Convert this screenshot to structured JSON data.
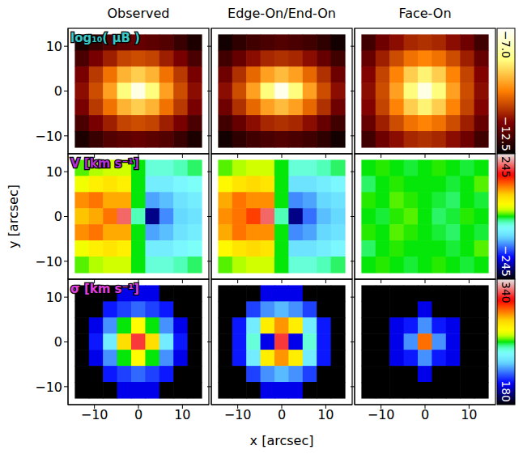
{
  "chart_data": {
    "type": "heatmap",
    "columns": [
      "Observed",
      "Edge-On/End-On",
      "Face-On"
    ],
    "xlabel": "x [arcsec]",
    "ylabel": "y [arcsec]",
    "xlim": [
      -16,
      16
    ],
    "ylim": [
      -14,
      14
    ],
    "xticks": [
      {
        "value": -10,
        "label": "−10"
      },
      0,
      10
    ],
    "yticks": [
      {
        "value": -10,
        "label": "−10"
      },
      0,
      10
    ],
    "x_centers": [
      -12.8,
      -9.6,
      -6.4,
      -3.2,
      0,
      3.2,
      6.4,
      9.6,
      12.8
    ],
    "y_centers": [
      10.8,
      7.2,
      3.6,
      0,
      -3.6,
      -7.2,
      -10.8
    ],
    "rows": [
      {
        "label": "log₁₀( μB )",
        "colorbar": {
          "range": [
            -12.5,
            -7.0
          ],
          "ticks": [
            {
              "value": -7.0,
              "label": "−7.0"
            },
            {
              "value": -12.5,
              "label": "−12.5"
            }
          ]
        },
        "panels": [
          {
            "cells": [
              [
                -12.2,
                -11.9,
                -11.6,
                -11.5,
                -11.4,
                -11.5,
                -11.6,
                -11.9,
                -12.2
              ],
              [
                -11.7,
                -11.2,
                -10.8,
                -10.4,
                -10.3,
                -10.4,
                -10.8,
                -11.2,
                -11.7
              ],
              [
                -11.2,
                -10.5,
                -9.9,
                -9.2,
                -8.9,
                -9.2,
                -9.9,
                -10.5,
                -11.2
              ],
              [
                -11.0,
                -10.3,
                -9.4,
                -8.4,
                -7.3,
                -8.4,
                -9.4,
                -10.3,
                -11.0
              ],
              [
                -11.2,
                -10.5,
                -9.9,
                -9.2,
                -8.9,
                -9.2,
                -9.9,
                -10.5,
                -11.2
              ],
              [
                -11.7,
                -11.2,
                -10.8,
                -10.4,
                -10.3,
                -10.4,
                -10.8,
                -11.2,
                -11.7
              ],
              [
                -12.2,
                -11.9,
                -11.6,
                -11.5,
                -11.4,
                -11.5,
                -11.6,
                -11.9,
                -12.2
              ]
            ]
          },
          {
            "cells": [
              [
                -12.3,
                -12.0,
                -11.8,
                -11.7,
                -11.6,
                -11.7,
                -11.8,
                -12.0,
                -12.3
              ],
              [
                -11.8,
                -11.4,
                -11.0,
                -10.7,
                -10.6,
                -10.7,
                -11.0,
                -11.4,
                -11.8
              ],
              [
                -11.3,
                -10.6,
                -10.0,
                -9.4,
                -9.1,
                -9.4,
                -10.0,
                -10.6,
                -11.3
              ],
              [
                -11.0,
                -10.3,
                -9.4,
                -8.4,
                -7.2,
                -8.4,
                -9.4,
                -10.3,
                -11.0
              ],
              [
                -11.3,
                -10.6,
                -10.0,
                -9.4,
                -9.1,
                -9.4,
                -10.0,
                -10.6,
                -11.3
              ],
              [
                -11.8,
                -11.4,
                -11.0,
                -10.7,
                -10.6,
                -10.7,
                -11.0,
                -11.4,
                -11.8
              ],
              [
                -12.3,
                -12.0,
                -11.8,
                -11.7,
                -11.6,
                -11.7,
                -11.8,
                -12.0,
                -12.3
              ]
            ]
          },
          {
            "cells": [
              [
                -11.8,
                -11.3,
                -11.0,
                -10.7,
                -10.6,
                -10.7,
                -11.0,
                -11.3,
                -11.8
              ],
              [
                -11.4,
                -10.8,
                -10.3,
                -9.9,
                -9.7,
                -9.9,
                -10.3,
                -10.8,
                -11.4
              ],
              [
                -11.1,
                -10.4,
                -9.7,
                -8.9,
                -8.5,
                -8.9,
                -9.7,
                -10.4,
                -11.1
              ],
              [
                -11.0,
                -10.3,
                -9.4,
                -8.4,
                -7.3,
                -8.4,
                -9.4,
                -10.3,
                -11.0
              ],
              [
                -11.1,
                -10.4,
                -9.7,
                -8.9,
                -8.5,
                -8.9,
                -9.7,
                -10.4,
                -11.1
              ],
              [
                -11.4,
                -10.8,
                -10.3,
                -9.9,
                -9.7,
                -9.9,
                -10.3,
                -10.8,
                -11.4
              ],
              [
                -11.8,
                -11.3,
                -11.0,
                -10.7,
                -10.6,
                -10.7,
                -11.0,
                -11.3,
                -11.8
              ]
            ]
          }
        ]
      },
      {
        "label": "V [km s⁻¹]",
        "colorbar": {
          "range": [
            -245,
            245
          ],
          "ticks": [
            245,
            {
              "value": -245,
              "label": "−245"
            }
          ]
        },
        "panels": [
          {
            "cells": [
              [
                10,
                20,
                30,
                30,
                0,
                -30,
                -30,
                -20,
                -10
              ],
              [
                40,
                60,
                70,
                60,
                0,
                -60,
                -60,
                -50,
                -40
              ],
              [
                110,
                120,
                100,
                100,
                0,
                -100,
                -90,
                -70,
                -60
              ],
              [
                90,
                100,
                120,
                200,
                -20,
                -200,
                -110,
                -80,
                -70
              ],
              [
                110,
                120,
                100,
                100,
                0,
                -100,
                -90,
                -70,
                -60
              ],
              [
                40,
                60,
                70,
                60,
                0,
                -60,
                -60,
                -50,
                -40
              ],
              [
                10,
                20,
                30,
                30,
                0,
                -30,
                -30,
                -20,
                -10
              ]
            ]
          },
          {
            "cells": [
              [
                10,
                20,
                30,
                30,
                0,
                -30,
                -30,
                -20,
                -10
              ],
              [
                50,
                70,
                80,
                70,
                0,
                -70,
                -70,
                -60,
                -50
              ],
              [
                100,
                120,
                110,
                110,
                0,
                -110,
                -100,
                -80,
                -70
              ],
              [
                110,
                120,
                140,
                200,
                -20,
                -200,
                -120,
                -90,
                -80
              ],
              [
                100,
                120,
                110,
                110,
                0,
                -110,
                -100,
                -80,
                -70
              ],
              [
                50,
                70,
                80,
                70,
                0,
                -70,
                -70,
                -60,
                -50
              ],
              [
                10,
                20,
                30,
                30,
                0,
                -30,
                -30,
                -20,
                -10
              ]
            ]
          },
          {
            "cells": [
              [
                0,
                5,
                0,
                -5,
                0,
                5,
                0,
                -5,
                0
              ],
              [
                -10,
                0,
                5,
                0,
                0,
                0,
                -5,
                0,
                10
              ],
              [
                5,
                0,
                10,
                5,
                0,
                -5,
                -10,
                0,
                -5
              ],
              [
                0,
                -5,
                5,
                10,
                0,
                -10,
                -5,
                5,
                0
              ],
              [
                5,
                0,
                10,
                5,
                0,
                -5,
                -10,
                0,
                -5
              ],
              [
                -10,
                0,
                5,
                0,
                0,
                0,
                -5,
                0,
                10
              ],
              [
                0,
                5,
                0,
                -5,
                0,
                5,
                0,
                -5,
                0
              ]
            ]
          }
        ]
      },
      {
        "label": "σ [km s⁻¹]",
        "colorbar": {
          "range": [
            180,
            340
          ],
          "ticks": [
            340,
            180
          ]
        },
        "panels": [
          {
            "cells": [
              [
                null,
                null,
                null,
                205,
                205,
                205,
                null,
                null,
                null
              ],
              [
                null,
                null,
                210,
                215,
                220,
                215,
                210,
                null,
                null
              ],
              [
                null,
                205,
                225,
                260,
                275,
                260,
                225,
                205,
                null
              ],
              [
                null,
                210,
                240,
                285,
                320,
                285,
                240,
                210,
                null
              ],
              [
                null,
                205,
                225,
                260,
                275,
                260,
                225,
                205,
                null
              ],
              [
                null,
                null,
                210,
                215,
                220,
                215,
                210,
                null,
                null
              ],
              [
                null,
                null,
                null,
                205,
                205,
                205,
                null,
                null,
                null
              ]
            ]
          },
          {
            "cells": [
              [
                null,
                null,
                null,
                205,
                205,
                205,
                null,
                null,
                null
              ],
              [
                null,
                null,
                215,
                225,
                230,
                225,
                215,
                null,
                null
              ],
              [
                null,
                210,
                240,
                280,
                295,
                280,
                240,
                210,
                null
              ],
              [
                null,
                210,
                250,
                205,
                320,
                205,
                250,
                210,
                null
              ],
              [
                null,
                210,
                240,
                280,
                295,
                280,
                240,
                210,
                null
              ],
              [
                null,
                null,
                215,
                225,
                230,
                225,
                215,
                null,
                null
              ],
              [
                null,
                null,
                null,
                205,
                205,
                205,
                null,
                null,
                null
              ]
            ]
          },
          {
            "cells": [
              [
                null,
                null,
                null,
                null,
                null,
                null,
                null,
                null,
                null
              ],
              [
                null,
                null,
                null,
                null,
                205,
                null,
                null,
                null,
                null
              ],
              [
                null,
                null,
                205,
                210,
                225,
                210,
                205,
                null,
                null
              ],
              [
                null,
                null,
                205,
                225,
                300,
                225,
                205,
                null,
                null
              ],
              [
                null,
                null,
                205,
                210,
                225,
                210,
                205,
                null,
                null
              ],
              [
                null,
                null,
                null,
                null,
                205,
                null,
                null,
                null,
                null
              ],
              [
                null,
                null,
                null,
                null,
                null,
                null,
                null,
                null,
                null
              ]
            ]
          }
        ]
      }
    ]
  }
}
